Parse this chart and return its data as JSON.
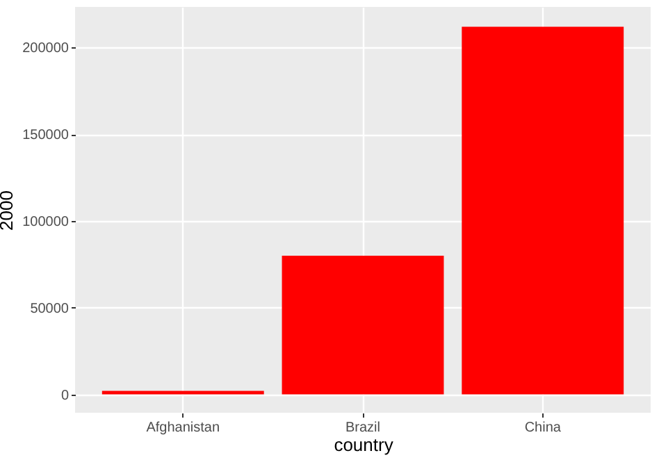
{
  "chart_data": {
    "type": "bar",
    "xlabel": "country",
    "ylabel": "2000",
    "categories": [
      "Afghanistan",
      "Brazil",
      "China"
    ],
    "values": [
      2000,
      80000,
      212000
    ],
    "color": "#ff0000",
    "ylim": [
      -10600,
      223400
    ],
    "yticks": [
      0,
      50000,
      100000,
      150000,
      200000
    ],
    "grid": true
  }
}
